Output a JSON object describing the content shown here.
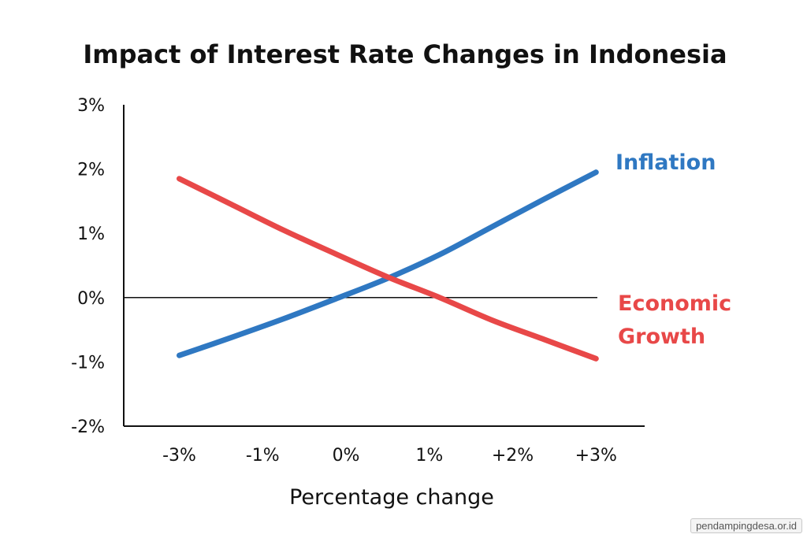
{
  "chart_data": {
    "type": "line",
    "title": "Impact of Interest Rate Changes in Indonesia",
    "xlabel": "Percentage change",
    "ylabel": "",
    "x": [
      -3,
      -1.5,
      0,
      1.5,
      3
    ],
    "x_ticks": [
      {
        "value": -3,
        "label": "-3%"
      },
      {
        "value": -1.8,
        "label": "-1%"
      },
      {
        "value": -0.6,
        "label": "0%"
      },
      {
        "value": 0.6,
        "label": "1%"
      },
      {
        "value": 1.8,
        "label": "+2%"
      },
      {
        "value": 3,
        "label": "+3%"
      }
    ],
    "y_ticks": [
      {
        "value": 3,
        "label": "3%"
      },
      {
        "value": 2,
        "label": "2%"
      },
      {
        "value": 1,
        "label": "1%"
      },
      {
        "value": 0,
        "label": "0%"
      },
      {
        "value": -1,
        "label": "-1%"
      },
      {
        "value": -2,
        "label": "-2%"
      }
    ],
    "xlim": [
      -3.8,
      3.7
    ],
    "ylim": [
      -2,
      3
    ],
    "grid": false,
    "legend": "inline labels at right end of lines",
    "series": [
      {
        "name": "Inflation",
        "color": "#2f78c2",
        "x": [
          -3,
          -2.25,
          -1.5,
          -0.75,
          0,
          0.75,
          1.5,
          2.25,
          3
        ],
        "values": [
          -0.9,
          -0.62,
          -0.33,
          -0.02,
          0.3,
          0.67,
          1.1,
          1.53,
          1.95
        ]
      },
      {
        "name": "Economic Growth",
        "color": "#e84848",
        "x": [
          -3,
          -2.25,
          -1.5,
          -0.75,
          0,
          0.75,
          1.5,
          2.25,
          3
        ],
        "values": [
          1.85,
          1.45,
          1.05,
          0.68,
          0.32,
          0.0,
          -0.35,
          -0.65,
          -0.95
        ]
      }
    ],
    "series_labels": [
      {
        "lines": [
          "Inflation"
        ],
        "color": "#2f78c2"
      },
      {
        "lines": [
          "Economic",
          "Growth"
        ],
        "color": "#e84848"
      }
    ]
  },
  "watermark": "pendampingdesa.or.id"
}
